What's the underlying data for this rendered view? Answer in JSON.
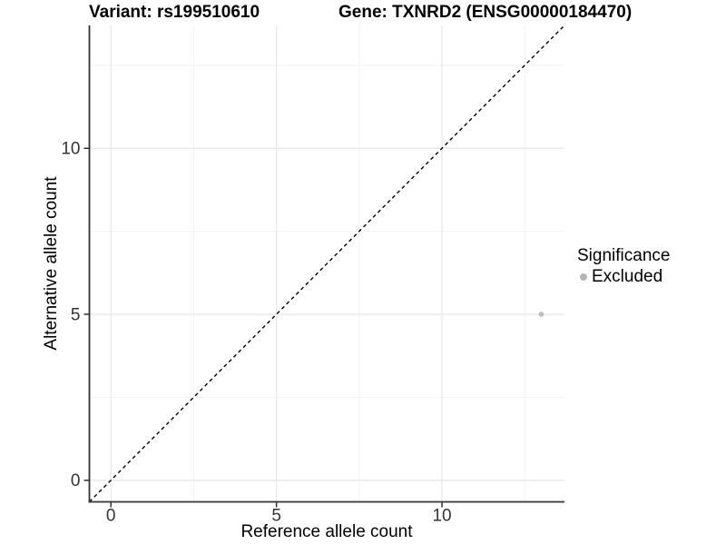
{
  "title": {
    "variant": "Variant: rs199510610",
    "gene": "Gene: TXNRD2 (ENSG00000184470)"
  },
  "axes": {
    "x_label": "Reference allele count",
    "y_label": "Alternative allele count"
  },
  "legend": {
    "title": "Significance",
    "items": [
      {
        "label": "Excluded",
        "color": "#b5b5b5"
      }
    ]
  },
  "colors": {
    "background": "#ffffff",
    "axis_line": "#333333",
    "grid_major": "#e7e7e7",
    "grid_minor": "#f2f2f2",
    "identity_line": "#000000",
    "point": "#bcbcbc",
    "tick_text": "#333333"
  },
  "chart_data": {
    "type": "scatter",
    "title": "Variant: rs199510610   Gene: TXNRD2 (ENSG00000184470)",
    "xlabel": "Reference allele count",
    "ylabel": "Alternative allele count",
    "xlim": [
      -0.65,
      13.7
    ],
    "ylim": [
      -0.65,
      13.7
    ],
    "xticks": [
      0,
      5,
      10
    ],
    "yticks": [
      0,
      5,
      10
    ],
    "x_minor_ticks": [
      2.5,
      7.5,
      12.5
    ],
    "y_minor_ticks": [
      2.5,
      7.5,
      12.5
    ],
    "grid": true,
    "legend_position": "right",
    "reference_line": {
      "type": "identity-diagonal",
      "style": "dashed",
      "color": "#000000"
    },
    "series": [
      {
        "name": "Excluded",
        "color": "#bcbcbc",
        "points": [
          {
            "x": 13,
            "y": 5
          }
        ]
      }
    ]
  }
}
